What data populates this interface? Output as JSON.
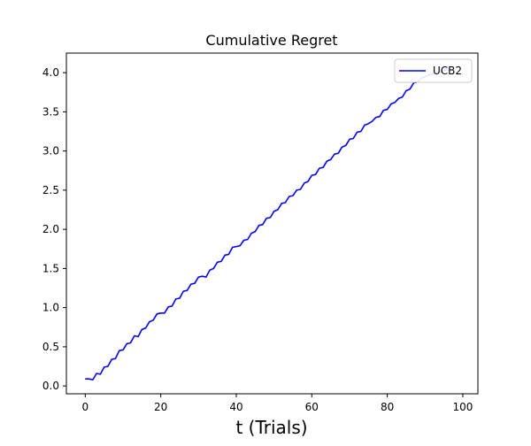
{
  "chart_data": {
    "type": "line",
    "title": "Cumulative Regret",
    "xlabel": "t (Trials)",
    "ylabel": "",
    "xlim": [
      -5,
      104
    ],
    "ylim": [
      -0.1,
      4.25
    ],
    "xticks": [
      0,
      20,
      40,
      60,
      80,
      100
    ],
    "xtick_labels": [
      "0",
      "20",
      "40",
      "60",
      "80",
      "100"
    ],
    "yticks": [
      0.0,
      0.5,
      1.0,
      1.5,
      2.0,
      2.5,
      3.0,
      3.5,
      4.0
    ],
    "ytick_labels": [
      "0.0",
      "0.5",
      "1.0",
      "1.5",
      "2.0",
      "2.5",
      "3.0",
      "3.5",
      "4.0"
    ],
    "grid": false,
    "legend_position": "top-right",
    "series": [
      {
        "name": "UCB2",
        "color": "#0000ff",
        "x": [
          0,
          1,
          2,
          3,
          4,
          5,
          6,
          7,
          8,
          9,
          10,
          11,
          12,
          13,
          14,
          15,
          16,
          17,
          18,
          19,
          20,
          21,
          22,
          23,
          24,
          25,
          26,
          27,
          28,
          29,
          30,
          31,
          32,
          33,
          34,
          35,
          36,
          37,
          38,
          39,
          40,
          41,
          42,
          43,
          44,
          45,
          46,
          47,
          48,
          49,
          50,
          51,
          52,
          53,
          54,
          55,
          56,
          57,
          58,
          59,
          60,
          61,
          62,
          63,
          64,
          65,
          66,
          67,
          68,
          69,
          70,
          71,
          72,
          73,
          74,
          75,
          76,
          77,
          78,
          79,
          80,
          81,
          82,
          83,
          84,
          85,
          86,
          87,
          88,
          89,
          90,
          91,
          92,
          93,
          94,
          95,
          96,
          97
        ],
        "y": [
          0.09,
          0.09,
          0.08,
          0.16,
          0.15,
          0.24,
          0.25,
          0.34,
          0.35,
          0.45,
          0.46,
          0.54,
          0.55,
          0.64,
          0.63,
          0.72,
          0.74,
          0.82,
          0.84,
          0.92,
          0.93,
          0.93,
          1.01,
          1.02,
          1.11,
          1.12,
          1.21,
          1.22,
          1.3,
          1.31,
          1.39,
          1.4,
          1.39,
          1.48,
          1.5,
          1.58,
          1.59,
          1.67,
          1.68,
          1.77,
          1.78,
          1.79,
          1.86,
          1.87,
          1.95,
          1.97,
          2.05,
          2.06,
          2.14,
          2.15,
          2.23,
          2.25,
          2.33,
          2.34,
          2.42,
          2.43,
          2.5,
          2.51,
          2.59,
          2.61,
          2.69,
          2.7,
          2.78,
          2.79,
          2.87,
          2.89,
          2.96,
          2.97,
          3.05,
          3.07,
          3.15,
          3.16,
          3.24,
          3.25,
          3.33,
          3.35,
          3.38,
          3.43,
          3.44,
          3.52,
          3.53,
          3.6,
          3.62,
          3.67,
          3.69,
          3.77,
          3.79,
          3.87,
          3.88,
          3.93,
          3.95,
          3.97,
          3.98,
          4.0,
          4.01,
          4.03,
          4.04,
          4.06
        ]
      }
    ]
  }
}
